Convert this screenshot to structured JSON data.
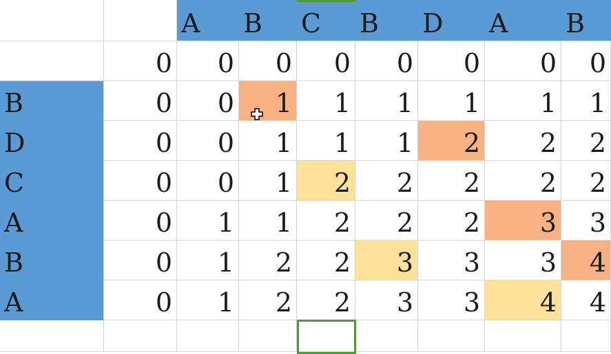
{
  "sheet": {
    "header_letters": [
      "A",
      "B",
      "C",
      "B",
      "D",
      "A",
      "B"
    ],
    "row_letters": [
      "B",
      "D",
      "C",
      "A",
      "B",
      "A"
    ],
    "values": [
      [
        "0",
        "0",
        "0",
        "0",
        "0",
        "0",
        "0",
        "0"
      ],
      [
        "0",
        "0",
        "1",
        "1",
        "1",
        "1",
        "1",
        "1"
      ],
      [
        "0",
        "0",
        "1",
        "1",
        "1",
        "2",
        "2",
        "2"
      ],
      [
        "0",
        "0",
        "1",
        "2",
        "2",
        "2",
        "2",
        "2"
      ],
      [
        "0",
        "1",
        "1",
        "2",
        "2",
        "2",
        "3",
        "3"
      ],
      [
        "0",
        "1",
        "2",
        "2",
        "3",
        "3",
        "3",
        "4"
      ],
      [
        "0",
        "1",
        "2",
        "2",
        "3",
        "3",
        "4",
        "4"
      ]
    ],
    "highlights": [
      {
        "row": 1,
        "col": 2,
        "color": "#f7b183"
      },
      {
        "row": 2,
        "col": 5,
        "color": "#f7b183"
      },
      {
        "row": 3,
        "col": 3,
        "color": "#ffe29a"
      },
      {
        "row": 4,
        "col": 6,
        "color": "#f7b183"
      },
      {
        "row": 5,
        "col": 4,
        "color": "#ffe29a"
      },
      {
        "row": 5,
        "col": 7,
        "color": "#f7b183"
      },
      {
        "row": 6,
        "col": 6,
        "color": "#ffe29a"
      }
    ],
    "colors": {
      "header_fill": "#5b9bd5",
      "grid_line": "#d6d6d6",
      "selection": "#4f9a3a",
      "orange": "#f7b183",
      "yellow": "#ffe29a"
    }
  },
  "cursor_icon": "move-cross-cursor"
}
